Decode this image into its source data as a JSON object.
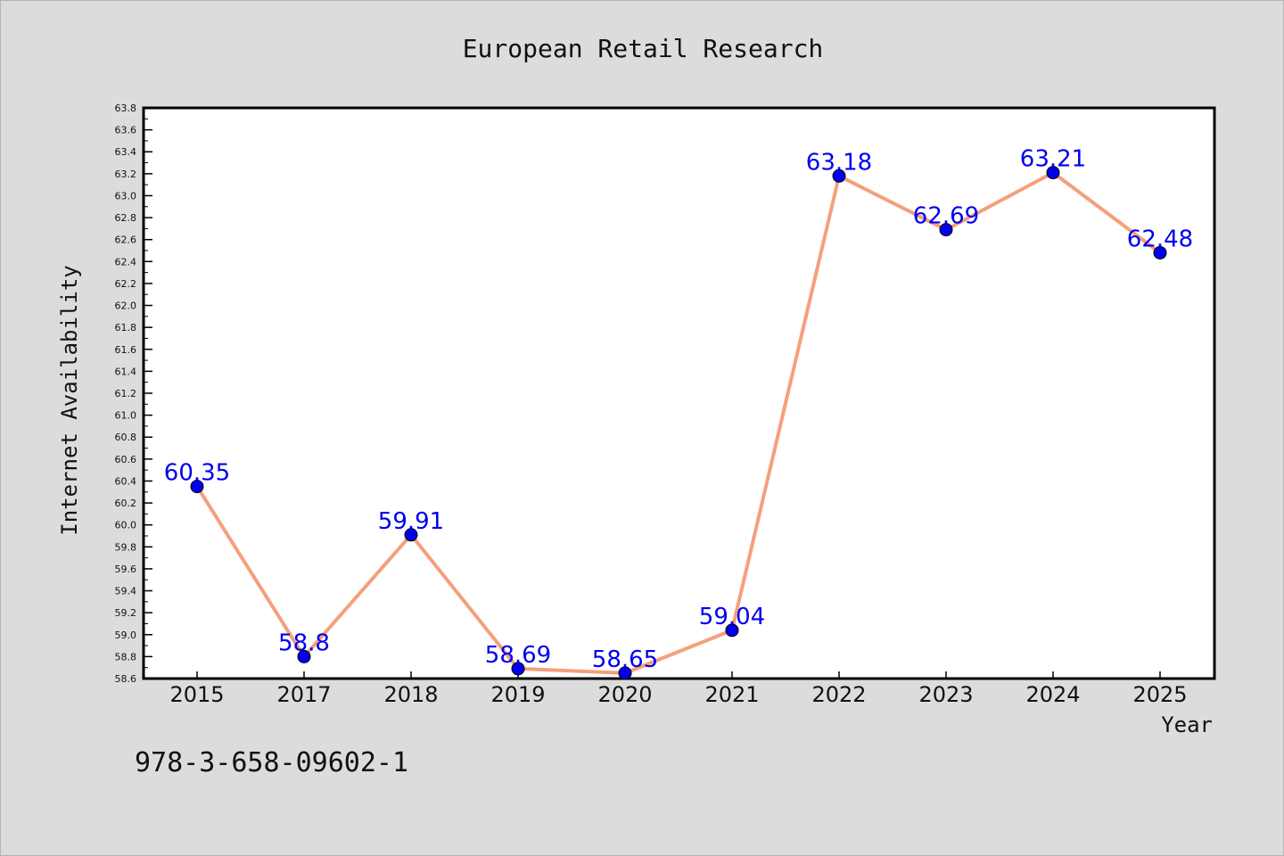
{
  "chart_data": {
    "type": "line",
    "title": "European Retail Research",
    "xlabel": "Year",
    "ylabel": "Internet Availability",
    "categories": [
      "2015",
      "2017",
      "2018",
      "2019",
      "2020",
      "2021",
      "2022",
      "2023",
      "2024",
      "2025"
    ],
    "series": [
      {
        "values": [
          60.35,
          58.8,
          59.91,
          58.69,
          58.65,
          59.04,
          63.18,
          62.69,
          63.21,
          62.48
        ],
        "labels": [
          "60.35",
          "58.8",
          "59.91",
          "58.69",
          "58.65",
          "59.04",
          "63.18",
          "62.69",
          "63.21",
          "62.48"
        ]
      }
    ],
    "ylim": [
      58.6,
      63.8
    ],
    "yticks": [
      "58.6",
      "58.8",
      "59.0",
      "59.2",
      "59.4",
      "59.6",
      "59.8",
      "60.0",
      "60.2",
      "60.4",
      "60.6",
      "60.8",
      "61.0",
      "61.2",
      "61.4",
      "61.6",
      "61.8",
      "62.0",
      "62.2",
      "62.4",
      "62.6",
      "62.8",
      "63.0",
      "63.2",
      "63.4",
      "63.6",
      "63.8"
    ],
    "grid": false,
    "legend": false,
    "colors": {
      "line": "#f4a07c",
      "marker": "#0000ee",
      "label": "#0000ee",
      "plot_background": "#ffffff",
      "page_background": "#dcdcdc"
    }
  },
  "annotation": "978-3-658-09602-1"
}
